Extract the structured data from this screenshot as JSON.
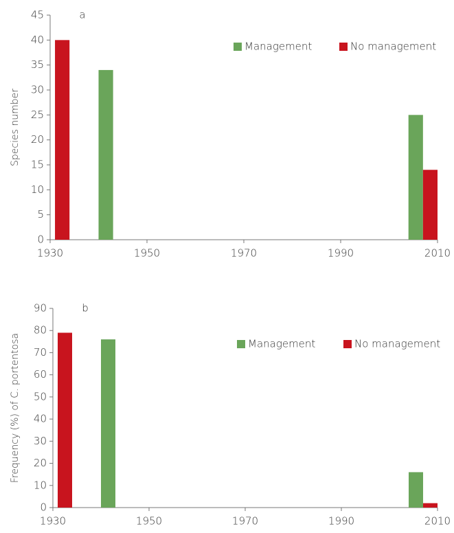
{
  "chart_data": [
    {
      "type": "bar",
      "annotation": "a",
      "y_label": "Species number",
      "xlim": [
        1930,
        2010
      ],
      "xticks": [
        1930,
        1950,
        1970,
        1990,
        2010
      ],
      "ylim": [
        0,
        45
      ],
      "yticks": [
        0,
        5,
        10,
        15,
        20,
        25,
        30,
        35,
        40,
        45
      ],
      "legend": "upper right",
      "series": [
        {
          "name": "Management",
          "color": "#6aa55a",
          "x": [
            1941.5,
            2005.5
          ],
          "values": [
            34,
            25
          ]
        },
        {
          "name": "No management",
          "color": "#c8141e",
          "x": [
            1932.5,
            2008.5
          ],
          "values": [
            40,
            14
          ]
        }
      ]
    },
    {
      "type": "bar",
      "annotation": "b",
      "y_label": "Frequency (%) of C. portentosa",
      "xlim": [
        1930,
        2010
      ],
      "xticks": [
        1930,
        1950,
        1970,
        1990,
        2010
      ],
      "ylim": [
        0,
        90
      ],
      "yticks": [
        0,
        10,
        20,
        30,
        40,
        50,
        60,
        70,
        80,
        90
      ],
      "legend": "upper right",
      "series": [
        {
          "name": "Management",
          "color": "#6aa55a",
          "x": [
            1941.5,
            2005.5
          ],
          "values": [
            76,
            16
          ]
        },
        {
          "name": "No management",
          "color": "#c8141e",
          "x": [
            1932.5,
            2008.5
          ],
          "values": [
            79,
            2
          ]
        }
      ]
    }
  ]
}
